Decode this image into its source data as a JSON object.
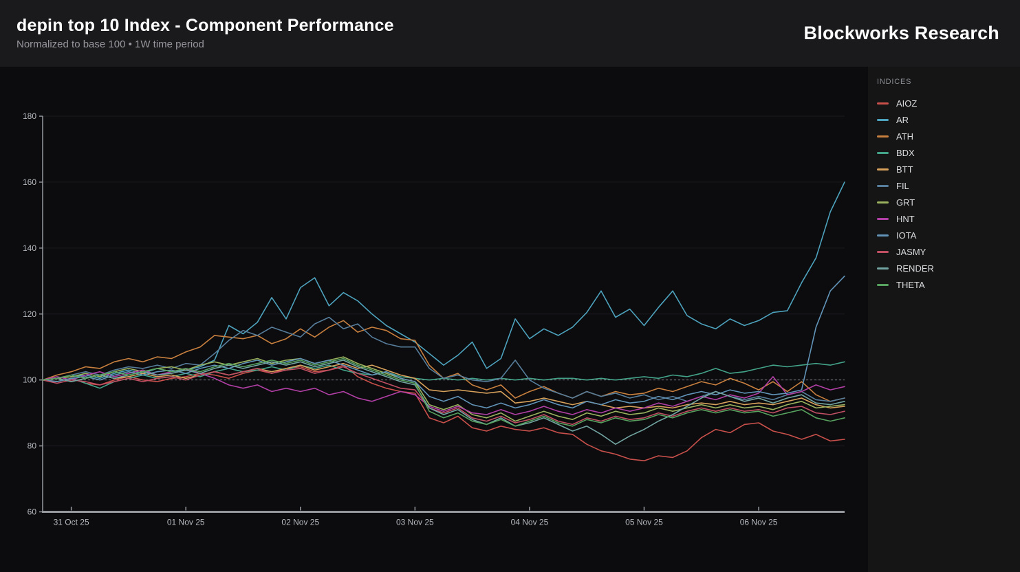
{
  "header": {
    "title": "depin top 10 Index - Component Performance",
    "subtitle": "Normalized to base 100 • 1W time period",
    "brand": "Blockworks Research"
  },
  "legend": {
    "title": "INDICES"
  },
  "chart_data": {
    "type": "line",
    "title": "depin top 10 Index - Component Performance",
    "subtitle": "Normalized to base 100 • 1W time period",
    "grid": true,
    "legend_position": "right",
    "baseline": 100,
    "baseline_style": "dashed",
    "y_axis": {
      "min": 60,
      "max": 180,
      "ticks": [
        60,
        80,
        100,
        120,
        140,
        160,
        180
      ]
    },
    "x_axis": {
      "unit": "time",
      "points_per_day": 8,
      "tick_labels": [
        "31 Oct 25",
        "01 Nov 25",
        "02 Nov 25",
        "03 Nov 25",
        "04 Nov 25",
        "05 Nov 25",
        "06 Nov 25"
      ],
      "tick_indices": [
        2,
        10,
        18,
        26,
        34,
        42,
        50
      ]
    },
    "axis_color": "#95999e",
    "grid_color": "#1d1d20",
    "baseline_color": "#7a7d81",
    "tick_text_color": "#b6babe",
    "series": [
      {
        "name": "AIOZ",
        "color": "#c9504b",
        "values": [
          100,
          99.5,
          100.5,
          99,
          98.5,
          100,
          101,
          100,
          99.5,
          100.5,
          101,
          102,
          101.5,
          100.5,
          102,
          103,
          102,
          103.5,
          104,
          102.5,
          103,
          104.5,
          101,
          99,
          97.5,
          96.5,
          96,
          88.5,
          87,
          89,
          85.5,
          84.5,
          86,
          85,
          84.5,
          85.5,
          84,
          83.5,
          80.5,
          78.5,
          77.5,
          76,
          75.5,
          77,
          76.5,
          78.5,
          82.5,
          85,
          84,
          86.5,
          87,
          84.5,
          83.5,
          82,
          83.5,
          81.5,
          82
        ]
      },
      {
        "name": "AR",
        "color": "#4da2bd",
        "values": [
          100,
          100.5,
          101,
          101.5,
          100.5,
          102,
          103,
          102,
          103.5,
          102.5,
          103,
          104,
          106,
          116.5,
          114,
          117.5,
          125,
          118.5,
          128,
          131,
          122.5,
          126.5,
          124,
          120,
          116.5,
          114,
          111.5,
          108,
          104.5,
          107.5,
          111.5,
          103.5,
          106.5,
          118.5,
          112.5,
          115.5,
          113.5,
          116,
          120.5,
          127,
          119,
          121.5,
          116.5,
          122,
          127,
          119.5,
          117,
          115.5,
          118.5,
          116.5,
          118,
          120.5,
          121,
          129.5,
          137,
          151,
          160
        ]
      },
      {
        "name": "ATH",
        "color": "#c9803f",
        "values": [
          100,
          101.5,
          102.5,
          104,
          103.5,
          105.5,
          106.5,
          105.5,
          107,
          106.5,
          108.5,
          110,
          113.5,
          113,
          112.5,
          113.5,
          111,
          112.5,
          115.5,
          113,
          116,
          118,
          114.5,
          116,
          115,
          112.5,
          112,
          104.5,
          100.5,
          102,
          98.5,
          97,
          98.5,
          94.5,
          96.5,
          98,
          96,
          94.5,
          96.5,
          95,
          96.5,
          95.5,
          96,
          97.5,
          96.5,
          98,
          99.5,
          98.5,
          100.5,
          99,
          97,
          99.5,
          96.5,
          99.5,
          95.5,
          93.5,
          94.5
        ]
      },
      {
        "name": "BDX",
        "color": "#43a389",
        "values": [
          100,
          99.5,
          100.5,
          99,
          97.5,
          99.5,
          100.5,
          101.5,
          100.5,
          101,
          102,
          101,
          102.5,
          103.5,
          102.5,
          103,
          104,
          103,
          104.5,
          103.5,
          104.5,
          103,
          102,
          101.5,
          102.5,
          101,
          100.5,
          100,
          100.5,
          100,
          100.5,
          100,
          100.5,
          100,
          100.5,
          100,
          100.5,
          100.5,
          100,
          100.5,
          100,
          100.5,
          101,
          100.5,
          101.5,
          101,
          102,
          103.5,
          102,
          102.5,
          103.5,
          104.5,
          104,
          104.5,
          105,
          104.5,
          105.5
        ]
      },
      {
        "name": "BTT",
        "color": "#d7a15b",
        "values": [
          100,
          100.5,
          99.5,
          100.5,
          101.5,
          100.5,
          101,
          102,
          101,
          101.5,
          100.5,
          101.5,
          102.5,
          101.5,
          102.5,
          103.5,
          102.5,
          103.5,
          104.5,
          103,
          104,
          105,
          103.5,
          104.5,
          103,
          101.5,
          100.5,
          97,
          96.5,
          97,
          96.5,
          96,
          96.5,
          93,
          93.5,
          94.5,
          93.5,
          92.5,
          93.5,
          92.5,
          91.5,
          92,
          91.5,
          92,
          91.5,
          92.5,
          93,
          92.5,
          93.5,
          92.5,
          93,
          92.5,
          93.5,
          94.5,
          92.5,
          91.5,
          92
        ]
      },
      {
        "name": "FIL",
        "color": "#567d9b",
        "values": [
          100,
          100.5,
          101.5,
          102.5,
          101.5,
          103,
          104,
          103.5,
          104.5,
          103.5,
          105,
          104.5,
          108,
          112,
          115,
          113.5,
          116,
          114.5,
          113,
          117,
          119,
          115.5,
          117,
          113,
          111,
          110,
          110,
          103.5,
          100.5,
          101.5,
          100,
          99.5,
          100.5,
          106,
          100,
          97.5,
          96,
          94.5,
          96.5,
          95,
          96,
          94.5,
          95.5,
          94,
          95,
          93.5,
          95,
          96.5,
          95,
          94,
          95,
          94,
          95.5,
          96.5,
          94,
          93.5,
          94.5
        ]
      },
      {
        "name": "GRT",
        "color": "#9bb35e",
        "values": [
          100,
          100.5,
          101,
          102,
          101,
          102.5,
          103.5,
          102.5,
          103.5,
          104,
          103,
          104.5,
          105.5,
          104.5,
          105.5,
          106.5,
          105,
          106,
          106.5,
          105,
          106,
          107,
          105,
          103.5,
          102,
          100.5,
          99.5,
          92.5,
          91,
          92.5,
          89.5,
          88.5,
          90,
          87.5,
          89,
          90.5,
          89,
          88,
          90,
          89,
          90.5,
          89.5,
          90,
          91.5,
          90.5,
          91.5,
          92.5,
          91.5,
          92.5,
          91.5,
          92,
          91,
          92.5,
          93.5,
          91.5,
          92,
          92.5
        ]
      },
      {
        "name": "HNT",
        "color": "#b13fa5",
        "values": [
          100,
          101,
          100,
          101.5,
          102.5,
          101,
          102,
          103,
          101.5,
          102.5,
          103.5,
          102,
          100.5,
          98.5,
          97.5,
          98.5,
          96.5,
          97.5,
          96.5,
          97.5,
          95.5,
          96.5,
          94.5,
          93.5,
          95,
          96.5,
          95.5,
          92,
          90.5,
          92,
          90,
          89.5,
          91,
          89.5,
          90.5,
          92,
          90.5,
          89.5,
          91,
          90,
          91.5,
          90.5,
          91.5,
          93,
          92,
          93.5,
          95,
          94,
          95.5,
          94.5,
          96,
          101,
          95.5,
          96.5,
          98.5,
          97,
          98
        ]
      },
      {
        "name": "IOTA",
        "color": "#6194b8",
        "values": [
          100,
          99.5,
          100.5,
          101,
          100,
          101.5,
          102.5,
          101.5,
          102.5,
          103,
          102,
          103.5,
          104.5,
          103.5,
          105,
          106,
          104.5,
          105.5,
          106.5,
          105,
          106,
          104.5,
          103,
          101.5,
          102.5,
          100.5,
          99.5,
          95,
          93.5,
          95,
          92.5,
          91.5,
          93,
          91.5,
          92.5,
          94,
          92.5,
          91.5,
          93.5,
          92.5,
          94,
          93,
          93.5,
          95,
          94,
          95.5,
          96.5,
          95.5,
          97,
          96,
          96.5,
          95.5,
          96,
          97,
          116,
          127,
          131.5
        ]
      },
      {
        "name": "JASMY",
        "color": "#c04f63",
        "values": [
          100,
          99,
          100,
          99.5,
          98.5,
          99.5,
          100.5,
          99.5,
          100.5,
          101,
          100,
          101.5,
          102.5,
          101.5,
          102.5,
          103.5,
          102,
          103,
          103.5,
          102,
          103,
          104,
          102,
          100.5,
          99,
          97.5,
          97,
          91.5,
          90,
          91.5,
          88.5,
          87.5,
          89,
          87,
          88,
          89.5,
          87.5,
          86.5,
          88.5,
          87.5,
          89,
          88,
          88.5,
          90,
          89,
          90.5,
          91.5,
          90.5,
          91.5,
          90.5,
          91,
          90,
          91.5,
          92,
          90,
          89.5,
          90.5
        ]
      },
      {
        "name": "RENDER",
        "color": "#72a5a2",
        "values": [
          100,
          100.5,
          99.5,
          100.5,
          101.5,
          100.5,
          101.5,
          102.5,
          101.5,
          102,
          103,
          102,
          103.5,
          104.5,
          103.5,
          104.5,
          105.5,
          104.5,
          105.5,
          104,
          105,
          106,
          104,
          102.5,
          101,
          99.5,
          98.5,
          91.5,
          89.5,
          91,
          88,
          86.5,
          88.5,
          86,
          87,
          88.5,
          86.5,
          84.5,
          86,
          83.5,
          80.5,
          83,
          85,
          87.5,
          89.5,
          92,
          94.5,
          96.5,
          95,
          93.5,
          94.5,
          93,
          94.5,
          95.5,
          93,
          92.5,
          93.5
        ]
      },
      {
        "name": "THETA",
        "color": "#57a25f",
        "values": [
          100,
          100.5,
          101.5,
          100.5,
          101.5,
          102.5,
          101.5,
          102.5,
          103.5,
          102.5,
          103.5,
          102.5,
          104,
          105,
          104,
          105,
          106,
          105,
          106,
          104.5,
          105.5,
          106.5,
          104.5,
          103,
          101.5,
          100,
          99,
          90.5,
          88.5,
          90,
          87.5,
          86.5,
          88,
          86,
          87.5,
          89,
          87,
          86,
          88,
          87,
          88.5,
          87.5,
          88,
          89.5,
          88.5,
          90,
          91,
          90,
          91,
          90,
          90.5,
          89,
          90,
          91,
          88.5,
          87.5,
          88.5
        ]
      }
    ]
  }
}
